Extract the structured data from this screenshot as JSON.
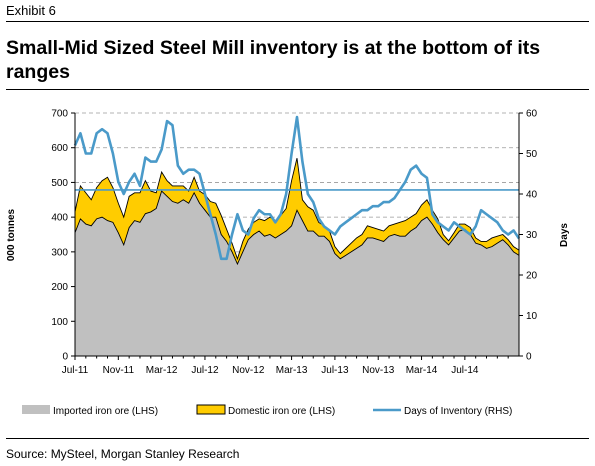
{
  "header": {
    "exhibit": "Exhibit 6",
    "title": "Small-Mid Sized Steel Mill inventory is at the bottom of its ranges"
  },
  "footer": {
    "source": "Source: MySteel, Morgan Stanley Research"
  },
  "colors": {
    "imported": "#c0c0c0",
    "domestic": "#ffcc00",
    "days": "#4a9ac9",
    "reference": "#4a9ac9",
    "outline": "#000000"
  },
  "chart_data": {
    "type": "area",
    "title": "",
    "ylabel": "000 tonnes",
    "y2label": "Days",
    "ylim": [
      0,
      700
    ],
    "y2lim": [
      0,
      60
    ],
    "yticks": [
      0,
      100,
      200,
      300,
      400,
      500,
      600,
      700
    ],
    "y2ticks": [
      0,
      10,
      20,
      30,
      40,
      50,
      60
    ],
    "xticklabels": [
      "Jul-11",
      "Nov-11",
      "Mar-12",
      "Jul-12",
      "Nov-12",
      "Mar-13",
      "Jul-13",
      "Nov-13",
      "Mar-14",
      "Jul-14"
    ],
    "xlim": [
      0,
      41
    ],
    "xtick_positions": [
      0,
      4,
      8,
      12,
      16,
      20,
      24,
      28,
      32,
      36
    ],
    "grid": "horizontal dashed",
    "legend_position": "bottom",
    "reference_line": {
      "axis": "y2",
      "value": 41
    },
    "series": [
      {
        "name": "Imported iron ore (LHS)",
        "axis": "y",
        "kind": "area",
        "x": [
          0,
          0.5,
          1,
          1.5,
          2,
          2.5,
          3,
          3.5,
          4,
          4.5,
          5,
          5.5,
          6,
          6.5,
          7,
          7.5,
          8,
          8.5,
          9,
          9.5,
          10,
          10.5,
          11,
          11.5,
          12,
          12.5,
          13,
          13.5,
          14,
          14.5,
          15,
          15.5,
          16,
          16.5,
          17,
          17.5,
          18,
          18.5,
          19,
          19.5,
          20,
          20.5,
          21,
          21.5,
          22,
          22.5,
          23,
          23.5,
          24,
          24.5,
          25,
          25.5,
          26,
          26.5,
          27,
          27.5,
          28,
          28.5,
          29,
          29.5,
          30,
          30.5,
          31,
          31.5,
          32,
          32.5,
          33,
          33.5,
          34,
          34.5,
          35,
          35.5,
          36,
          36.5,
          37,
          37.5,
          38,
          38.5,
          39,
          39.5,
          40,
          40.5,
          41
        ],
        "values": [
          355,
          395,
          380,
          375,
          395,
          400,
          390,
          385,
          355,
          320,
          370,
          390,
          385,
          410,
          415,
          425,
          475,
          460,
          445,
          440,
          450,
          440,
          470,
          440,
          420,
          400,
          400,
          350,
          330,
          300,
          265,
          300,
          335,
          350,
          360,
          345,
          350,
          340,
          350,
          360,
          375,
          420,
          390,
          360,
          360,
          345,
          345,
          330,
          295,
          280,
          290,
          300,
          310,
          320,
          340,
          340,
          335,
          330,
          345,
          350,
          345,
          345,
          360,
          370,
          390,
          400,
          380,
          355,
          335,
          320,
          340,
          360,
          365,
          350,
          325,
          320,
          310,
          315,
          325,
          335,
          320,
          300,
          290
        ]
      },
      {
        "name": "Domestic iron ore (LHS)",
        "axis": "y",
        "kind": "stacked-area",
        "x": [
          0,
          0.5,
          1,
          1.5,
          2,
          2.5,
          3,
          3.5,
          4,
          4.5,
          5,
          5.5,
          6,
          6.5,
          7,
          7.5,
          8,
          8.5,
          9,
          9.5,
          10,
          10.5,
          11,
          11.5,
          12,
          12.5,
          13,
          13.5,
          14,
          14.5,
          15,
          15.5,
          16,
          16.5,
          17,
          17.5,
          18,
          18.5,
          19,
          19.5,
          20,
          20.5,
          21,
          21.5,
          22,
          22.5,
          23,
          23.5,
          24,
          24.5,
          25,
          25.5,
          26,
          26.5,
          27,
          27.5,
          28,
          28.5,
          29,
          29.5,
          30,
          30.5,
          31,
          31.5,
          32,
          32.5,
          33,
          33.5,
          34,
          34.5,
          35,
          35.5,
          36,
          36.5,
          37,
          37.5,
          38,
          38.5,
          39,
          39.5,
          40,
          40.5,
          41
        ],
        "values": [
          60,
          95,
          90,
          75,
          90,
          105,
          125,
          100,
          85,
          80,
          90,
          80,
          85,
          95,
          60,
          45,
          55,
          45,
          45,
          50,
          40,
          35,
          45,
          35,
          45,
          45,
          40,
          55,
          35,
          25,
          15,
          30,
          30,
          35,
          35,
          45,
          50,
          50,
          55,
          65,
          130,
          150,
          60,
          70,
          60,
          40,
          30,
          30,
          20,
          15,
          20,
          25,
          30,
          30,
          35,
          30,
          30,
          30,
          30,
          30,
          40,
          45,
          40,
          40,
          45,
          50,
          40,
          40,
          15,
          12,
          15,
          20,
          15,
          20,
          15,
          10,
          20,
          25,
          20,
          15,
          15,
          15,
          15
        ]
      },
      {
        "name": "Days of Inventory (RHS)",
        "axis": "y2",
        "kind": "line",
        "x": [
          0,
          0.5,
          1,
          1.5,
          2,
          2.5,
          3,
          3.5,
          4,
          4.5,
          5,
          5.5,
          6,
          6.5,
          7,
          7.5,
          8,
          8.5,
          9,
          9.5,
          10,
          10.5,
          11,
          11.5,
          12,
          12.5,
          13,
          13.5,
          14,
          14.5,
          15,
          15.5,
          16,
          16.5,
          17,
          17.5,
          18,
          18.5,
          19,
          19.5,
          20,
          20.5,
          21,
          21.5,
          22,
          22.5,
          23,
          23.5,
          24,
          24.5,
          25,
          25.5,
          26,
          26.5,
          27,
          27.5,
          28,
          28.5,
          29,
          29.5,
          30,
          30.5,
          31,
          31.5,
          32,
          32.5,
          33,
          33.5,
          34,
          34.5,
          35,
          35.5,
          36,
          36.5,
          37,
          37.5,
          38,
          38.5,
          39,
          39.5,
          40,
          40.5,
          41
        ],
        "values": [
          52,
          55,
          50,
          50,
          55,
          56,
          55,
          50,
          43,
          40,
          43,
          45,
          42,
          49,
          48,
          48,
          51,
          58,
          57,
          47,
          45,
          46,
          46,
          45,
          40,
          35,
          30,
          24,
          24,
          30,
          35,
          31,
          30,
          34,
          36,
          35,
          35,
          33,
          35,
          40,
          50,
          59,
          48,
          40,
          38,
          34,
          32,
          31,
          30,
          32,
          33,
          34,
          35,
          36,
          36,
          37,
          37,
          38,
          38,
          39,
          41,
          43,
          46,
          47,
          45,
          44,
          35,
          33,
          32,
          31,
          33,
          32,
          31,
          30,
          32,
          36,
          35,
          34,
          33,
          31,
          30,
          31,
          29
        ]
      }
    ]
  }
}
